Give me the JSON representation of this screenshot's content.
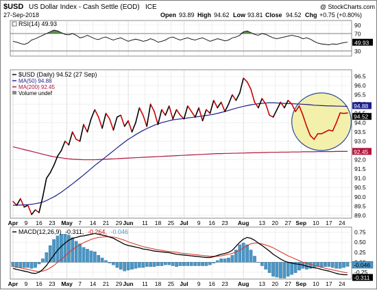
{
  "header": {
    "symbol": "$USD",
    "description": "US Dollar Index - Cash Settle (EOD)",
    "exchange": "ICE",
    "date": "27-Sep-2018",
    "watermark": "@ StockCharts.com",
    "open_label": "Open",
    "open": "93.89",
    "high_label": "High",
    "high": "94.62",
    "low_label": "Low",
    "low": "93.81",
    "close_label": "Close",
    "close": "94.52",
    "change_label": "Chg",
    "change": "+0.75 (+0.80%)"
  },
  "colors": {
    "price": "#000000",
    "price_highlight": "#cc0000",
    "ma50": "#1d1d8c",
    "ma200": "#b0143c",
    "rsi_fill": "#3a7a2c",
    "macd": "#000000",
    "signal": "#d93a2a",
    "histogram": "#4a96c6",
    "ellipse_fill": "#f3f0a8",
    "ellipse_stroke": "#1a3f99"
  },
  "chart_data": [
    {
      "type": "line",
      "panel": "rsi",
      "title": "RSI(14) 49.93",
      "y_ticks": [
        30,
        49.93,
        70,
        90
      ],
      "y_tick_labels": [
        "30",
        "49.93",
        "70",
        "90"
      ],
      "ylim": [
        18,
        100
      ],
      "reference_lines": [
        30,
        70
      ],
      "fill_above": 70,
      "x": [
        0,
        2,
        4,
        6,
        8,
        10,
        12,
        14,
        16,
        18,
        20,
        22,
        24,
        26,
        28,
        30,
        32,
        34,
        36,
        38,
        40,
        42,
        44,
        46,
        48,
        50,
        52,
        54,
        56,
        58,
        60,
        62,
        64,
        66,
        68,
        70,
        72,
        74,
        76,
        78,
        80,
        82,
        84,
        86,
        88,
        90,
        92,
        94,
        96,
        98,
        100,
        102,
        104,
        106,
        108,
        110,
        112,
        114,
        116,
        118,
        120,
        122,
        124,
        126,
        128,
        130,
        132,
        134,
        136,
        138,
        140,
        142,
        144,
        146,
        148,
        150,
        152,
        154,
        156,
        158,
        160,
        162,
        164,
        166,
        168,
        170,
        172,
        174,
        176,
        178,
        180
      ],
      "series": [
        {
          "values": [
            52,
            50,
            47,
            45,
            48,
            55,
            58,
            62,
            66,
            70,
            74,
            78,
            76,
            72,
            68,
            67,
            70,
            66,
            60,
            62,
            66,
            62,
            58,
            56,
            60,
            62,
            58,
            55,
            58,
            60,
            56,
            52,
            55,
            57,
            55,
            52,
            54,
            58,
            55,
            50,
            52,
            55,
            60,
            62,
            58,
            55,
            58,
            60,
            57,
            55,
            58,
            60,
            56,
            52,
            55,
            58,
            56,
            53,
            55,
            60,
            62,
            66,
            74,
            76,
            72,
            68,
            66,
            70,
            68,
            64,
            60,
            58,
            60,
            62,
            64,
            66,
            64,
            62,
            58,
            60,
            57,
            52,
            48,
            46,
            45,
            44,
            46,
            45,
            47,
            49,
            50
          ]
        }
      ],
      "xlim": [
        0,
        180
      ]
    },
    {
      "type": "line",
      "panel": "price",
      "title": "$USD (Daily) 94.52 (27 Sep)",
      "legend": [
        "$USD (Daily) 94.52 (27 Sep)",
        "MA(50) 94.88",
        "MA(200) 92.45",
        "Volume undef"
      ],
      "y_ticks": [
        89.0,
        89.5,
        90.0,
        90.5,
        91.0,
        91.5,
        92.0,
        92.5,
        93.0,
        93.5,
        94.0,
        94.5,
        95.0,
        95.5,
        96.0,
        96.5
      ],
      "y_tick_labels": [
        "89.0",
        "89.5",
        "90.0",
        "90.5",
        "91.0",
        "91.5",
        "92.0",
        "92.5",
        "93.0",
        "93.5",
        "94.0",
        "94.5",
        "95.0",
        "95.5",
        "96.0",
        "96.5"
      ],
      "ylim": [
        88.85,
        96.85
      ],
      "xlim": [
        0,
        180
      ],
      "value_tags": [
        {
          "label": "94.88",
          "value": 94.88
        },
        {
          "label": "94.52",
          "value": 94.52
        },
        {
          "label": "92.45",
          "value": 92.45
        }
      ],
      "highlight_x": [
        152,
        180
      ],
      "highlight_ellipse": {
        "x_center": 166,
        "x_radius": 16,
        "y_center": 94.05,
        "y_radius": 1.55
      },
      "x": [
        0,
        2,
        4,
        6,
        8,
        10,
        12,
        14,
        16,
        18,
        20,
        22,
        24,
        26,
        28,
        30,
        32,
        34,
        36,
        38,
        40,
        42,
        44,
        46,
        48,
        50,
        52,
        54,
        56,
        58,
        60,
        62,
        64,
        66,
        68,
        70,
        72,
        74,
        76,
        78,
        80,
        82,
        84,
        86,
        88,
        90,
        92,
        94,
        96,
        98,
        100,
        102,
        104,
        106,
        108,
        110,
        112,
        114,
        116,
        118,
        120,
        122,
        124,
        126,
        128,
        130,
        132,
        134,
        136,
        138,
        140,
        142,
        144,
        146,
        148,
        150,
        152,
        154,
        156,
        158,
        160,
        162,
        164,
        166,
        168,
        170,
        172,
        174,
        176,
        178,
        180
      ],
      "series": [
        {
          "name": "$USD (Daily) 94.52 (27 Sep)",
          "values": [
            89.75,
            89.55,
            89.9,
            89.45,
            89.55,
            89.05,
            89.3,
            89.15,
            90.0,
            91.0,
            91.3,
            91.7,
            92.2,
            92.5,
            93.0,
            92.8,
            93.5,
            93.1,
            93.0,
            93.9,
            93.5,
            94.2,
            94.7,
            94.3,
            93.7,
            94.5,
            94.2,
            93.6,
            94.3,
            94.4,
            93.8,
            94.1,
            93.5,
            94.0,
            94.8,
            94.4,
            93.8,
            95.0,
            94.6,
            93.9,
            94.7,
            94.4,
            94.9,
            94.2,
            94.7,
            94.4,
            94.2,
            94.9,
            94.6,
            94.3,
            94.8,
            94.1,
            94.7,
            94.5,
            95.2,
            94.8,
            95.1,
            94.6,
            95.0,
            95.5,
            95.2,
            95.6,
            96.4,
            96.2,
            95.8,
            95.1,
            94.8,
            95.3,
            95.0,
            94.4,
            94.3,
            94.7,
            95.1,
            94.8,
            95.2,
            95.0,
            94.6,
            94.9,
            94.4,
            93.8,
            93.3,
            93.1,
            93.4,
            93.4,
            93.5,
            93.6,
            93.55,
            94.0,
            94.52,
            94.5,
            94.52
          ]
        },
        {
          "name": "MA(50)",
          "values": [
            89.55,
            89.55,
            89.56,
            89.57,
            89.58,
            89.6,
            89.63,
            89.67,
            89.72,
            89.8,
            89.9,
            90.0,
            90.12,
            90.25,
            90.4,
            90.55,
            90.7,
            90.86,
            91.02,
            91.18,
            91.35,
            91.52,
            91.69,
            91.85,
            92.0,
            92.16,
            92.32,
            92.48,
            92.64,
            92.8,
            92.95,
            93.1,
            93.22,
            93.35,
            93.47,
            93.58,
            93.68,
            93.77,
            93.86,
            93.93,
            94.0,
            94.05,
            94.1,
            94.15,
            94.18,
            94.2,
            94.22,
            94.25,
            94.28,
            94.3,
            94.33,
            94.36,
            94.39,
            94.42,
            94.45,
            94.5,
            94.55,
            94.6,
            94.66,
            94.72,
            94.78,
            94.83,
            94.88,
            94.92,
            94.96,
            94.99,
            95.02,
            95.04,
            95.06,
            95.07,
            95.07,
            95.06,
            95.05,
            95.04,
            95.03,
            95.02,
            95.01,
            95.0,
            94.99,
            94.98,
            94.96,
            94.94,
            94.93,
            94.92,
            94.91,
            94.9,
            94.9,
            94.89,
            94.89,
            94.88,
            94.88
          ]
        },
        {
          "name": "MA(200)",
          "values": [
            92.7,
            92.65,
            92.6,
            92.55,
            92.5,
            92.45,
            92.4,
            92.35,
            92.3,
            92.25,
            92.2,
            92.16,
            92.13,
            92.1,
            92.07,
            92.05,
            92.03,
            92.02,
            92.01,
            92.0,
            92.0,
            92.0,
            92.0,
            92.01,
            92.02,
            92.03,
            92.04,
            92.05,
            92.06,
            92.07,
            92.08,
            92.09,
            92.1,
            92.11,
            92.12,
            92.13,
            92.14,
            92.15,
            92.16,
            92.17,
            92.18,
            92.19,
            92.2,
            92.21,
            92.22,
            92.23,
            92.24,
            92.25,
            92.26,
            92.27,
            92.28,
            92.29,
            92.3,
            92.31,
            92.32,
            92.33,
            92.33,
            92.34,
            92.34,
            92.35,
            92.35,
            92.36,
            92.36,
            92.37,
            92.37,
            92.38,
            92.38,
            92.39,
            92.39,
            92.4,
            92.4,
            92.4,
            92.41,
            92.41,
            92.41,
            92.42,
            92.42,
            92.42,
            92.43,
            92.43,
            92.43,
            92.43,
            92.44,
            92.44,
            92.44,
            92.44,
            92.44,
            92.45,
            92.45,
            92.45,
            92.45
          ]
        }
      ]
    },
    {
      "type": "line",
      "panel": "macd",
      "title_parts": [
        {
          "text": "MACD(12,26,9)",
          "color": "#000000"
        },
        {
          "text": "-0.311,",
          "color": "#000000"
        },
        {
          "text": "-0.264,",
          "color": "#cc0000"
        },
        {
          "text": "-0.046",
          "color": "#4a96c6"
        }
      ],
      "y_ticks": [
        0.75,
        0.5,
        0.25,
        0.0,
        -0.25
      ],
      "y_tick_labels": [
        "0.75",
        "0.50",
        "0.25",
        "0.00",
        "-0.25"
      ],
      "ylim": [
        -0.42,
        0.88
      ],
      "xlim": [
        0,
        180
      ],
      "value_tags": [
        {
          "label": "-0.046",
          "value": -0.046
        },
        {
          "label": "-0.311",
          "value": -0.311
        }
      ],
      "x": [
        0,
        2,
        4,
        6,
        8,
        10,
        12,
        14,
        16,
        18,
        20,
        22,
        24,
        26,
        28,
        30,
        32,
        34,
        36,
        38,
        40,
        42,
        44,
        46,
        48,
        50,
        52,
        54,
        56,
        58,
        60,
        62,
        64,
        66,
        68,
        70,
        72,
        74,
        76,
        78,
        80,
        82,
        84,
        86,
        88,
        90,
        92,
        94,
        96,
        98,
        100,
        102,
        104,
        106,
        108,
        110,
        112,
        114,
        116,
        118,
        120,
        122,
        124,
        126,
        128,
        130,
        132,
        134,
        136,
        138,
        140,
        142,
        144,
        146,
        148,
        150,
        152,
        154,
        156,
        158,
        160,
        162,
        164,
        166,
        168,
        170,
        172,
        174,
        176,
        178,
        180
      ],
      "series": [
        {
          "name": "MACD",
          "values": [
            -0.15,
            -0.18,
            -0.2,
            -0.22,
            -0.24,
            -0.27,
            -0.28,
            -0.25,
            -0.18,
            -0.08,
            0.05,
            0.18,
            0.3,
            0.4,
            0.48,
            0.55,
            0.6,
            0.62,
            0.65,
            0.66,
            0.68,
            0.7,
            0.72,
            0.7,
            0.68,
            0.66,
            0.63,
            0.6,
            0.55,
            0.5,
            0.45,
            0.42,
            0.4,
            0.38,
            0.36,
            0.33,
            0.32,
            0.3,
            0.28,
            0.27,
            0.26,
            0.25,
            0.24,
            0.22,
            0.2,
            0.19,
            0.18,
            0.17,
            0.16,
            0.15,
            0.14,
            0.13,
            0.12,
            0.12,
            0.14,
            0.17,
            0.2,
            0.22,
            0.25,
            0.3,
            0.4,
            0.5,
            0.58,
            0.62,
            0.6,
            0.55,
            0.48,
            0.42,
            0.35,
            0.28,
            0.2,
            0.14,
            0.08,
            0.03,
            0.0,
            -0.02,
            -0.04,
            -0.05,
            -0.07,
            -0.1,
            -0.12,
            -0.14,
            -0.15,
            -0.18,
            -0.2,
            -0.22,
            -0.25,
            -0.28,
            -0.3,
            -0.31,
            -0.311
          ]
        },
        {
          "name": "Signal",
          "values": [
            -0.1,
            -0.12,
            -0.14,
            -0.16,
            -0.18,
            -0.2,
            -0.22,
            -0.23,
            -0.22,
            -0.19,
            -0.14,
            -0.08,
            0.0,
            0.08,
            0.16,
            0.24,
            0.32,
            0.38,
            0.44,
            0.49,
            0.53,
            0.57,
            0.6,
            0.62,
            0.63,
            0.64,
            0.64,
            0.63,
            0.61,
            0.58,
            0.55,
            0.51,
            0.48,
            0.45,
            0.42,
            0.39,
            0.37,
            0.35,
            0.33,
            0.31,
            0.3,
            0.28,
            0.27,
            0.26,
            0.25,
            0.23,
            0.22,
            0.21,
            0.2,
            0.19,
            0.18,
            0.17,
            0.16,
            0.15,
            0.15,
            0.15,
            0.16,
            0.18,
            0.2,
            0.22,
            0.26,
            0.3,
            0.36,
            0.42,
            0.46,
            0.48,
            0.48,
            0.46,
            0.43,
            0.4,
            0.36,
            0.31,
            0.26,
            0.21,
            0.16,
            0.12,
            0.08,
            0.04,
            0.0,
            -0.02,
            -0.05,
            -0.08,
            -0.1,
            -0.12,
            -0.15,
            -0.17,
            -0.19,
            -0.21,
            -0.23,
            -0.25,
            -0.264
          ]
        }
      ]
    }
  ],
  "x_axis": [
    {
      "label": "Apr",
      "x": 0,
      "bold": true
    },
    {
      "label": "9",
      "x": 7
    },
    {
      "label": "16",
      "x": 14
    },
    {
      "label": "23",
      "x": 21
    },
    {
      "label": "May",
      "x": 29,
      "bold": true
    },
    {
      "label": "7",
      "x": 36
    },
    {
      "label": "14",
      "x": 43
    },
    {
      "label": "21",
      "x": 50
    },
    {
      "label": "29",
      "x": 57
    },
    {
      "label": "Jun",
      "x": 62,
      "bold": true
    },
    {
      "label": "11",
      "x": 71
    },
    {
      "label": "18",
      "x": 78
    },
    {
      "label": "25",
      "x": 85
    },
    {
      "label": "Jul",
      "x": 92,
      "bold": true
    },
    {
      "label": "9",
      "x": 100
    },
    {
      "label": "16",
      "x": 107
    },
    {
      "label": "23",
      "x": 114
    },
    {
      "label": "Aug",
      "x": 124,
      "bold": true
    },
    {
      "label": "13",
      "x": 134
    },
    {
      "label": "20",
      "x": 141
    },
    {
      "label": "27",
      "x": 148
    },
    {
      "label": "Sep",
      "x": 155,
      "bold": true
    },
    {
      "label": "10",
      "x": 163
    },
    {
      "label": "17",
      "x": 170
    },
    {
      "label": "24",
      "x": 177
    }
  ]
}
